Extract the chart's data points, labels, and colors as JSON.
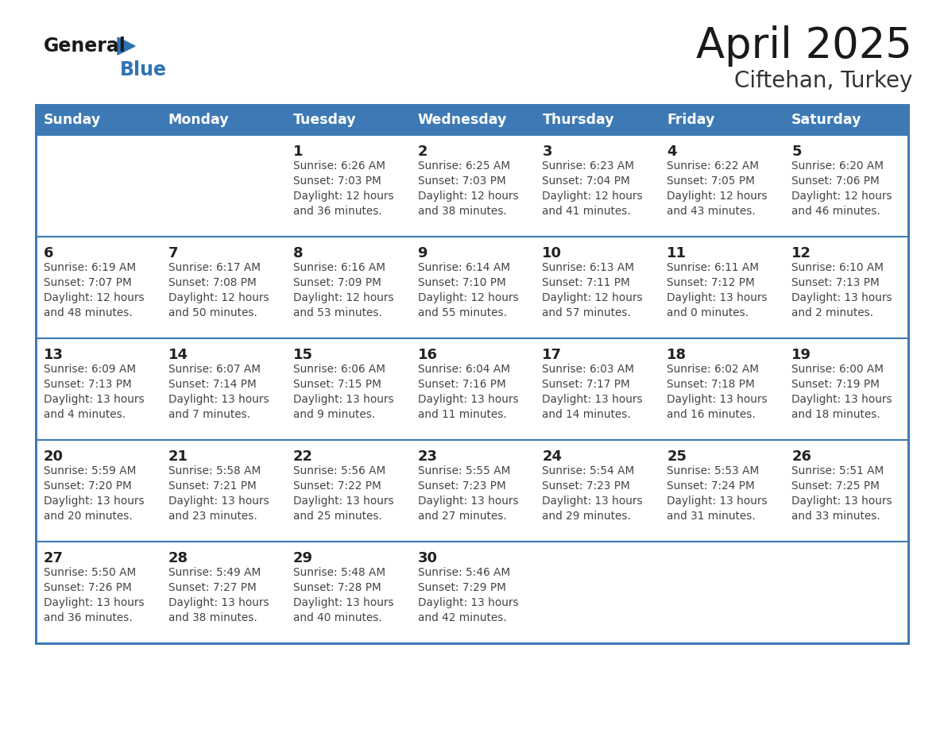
{
  "title": "April 2025",
  "subtitle": "Ciftehan, Turkey",
  "days_of_week": [
    "Sunday",
    "Monday",
    "Tuesday",
    "Wednesday",
    "Thursday",
    "Friday",
    "Saturday"
  ],
  "header_bg": "#3D7AB5",
  "header_text": "#FFFFFF",
  "cell_bg": "#FFFFFF",
  "row_border_color": "#3D7AB5",
  "day_number_color": "#222222",
  "text_color": "#444444",
  "title_color": "#1a1a1a",
  "subtitle_color": "#333333",
  "logo_general_color": "#1a1a1a",
  "logo_blue_color": "#2E74B5",
  "outer_border_color": "#3D7AB5",
  "weeks": [
    [
      {
        "day": null,
        "data": null
      },
      {
        "day": null,
        "data": null
      },
      {
        "day": 1,
        "data": {
          "sunrise": "6:26 AM",
          "sunset": "7:03 PM",
          "daylight": "12 hours",
          "daylight2": "and 36 minutes."
        }
      },
      {
        "day": 2,
        "data": {
          "sunrise": "6:25 AM",
          "sunset": "7:03 PM",
          "daylight": "12 hours",
          "daylight2": "and 38 minutes."
        }
      },
      {
        "day": 3,
        "data": {
          "sunrise": "6:23 AM",
          "sunset": "7:04 PM",
          "daylight": "12 hours",
          "daylight2": "and 41 minutes."
        }
      },
      {
        "day": 4,
        "data": {
          "sunrise": "6:22 AM",
          "sunset": "7:05 PM",
          "daylight": "12 hours",
          "daylight2": "and 43 minutes."
        }
      },
      {
        "day": 5,
        "data": {
          "sunrise": "6:20 AM",
          "sunset": "7:06 PM",
          "daylight": "12 hours",
          "daylight2": "and 46 minutes."
        }
      }
    ],
    [
      {
        "day": 6,
        "data": {
          "sunrise": "6:19 AM",
          "sunset": "7:07 PM",
          "daylight": "12 hours",
          "daylight2": "and 48 minutes."
        }
      },
      {
        "day": 7,
        "data": {
          "sunrise": "6:17 AM",
          "sunset": "7:08 PM",
          "daylight": "12 hours",
          "daylight2": "and 50 minutes."
        }
      },
      {
        "day": 8,
        "data": {
          "sunrise": "6:16 AM",
          "sunset": "7:09 PM",
          "daylight": "12 hours",
          "daylight2": "and 53 minutes."
        }
      },
      {
        "day": 9,
        "data": {
          "sunrise": "6:14 AM",
          "sunset": "7:10 PM",
          "daylight": "12 hours",
          "daylight2": "and 55 minutes."
        }
      },
      {
        "day": 10,
        "data": {
          "sunrise": "6:13 AM",
          "sunset": "7:11 PM",
          "daylight": "12 hours",
          "daylight2": "and 57 minutes."
        }
      },
      {
        "day": 11,
        "data": {
          "sunrise": "6:11 AM",
          "sunset": "7:12 PM",
          "daylight": "13 hours",
          "daylight2": "and 0 minutes."
        }
      },
      {
        "day": 12,
        "data": {
          "sunrise": "6:10 AM",
          "sunset": "7:13 PM",
          "daylight": "13 hours",
          "daylight2": "and 2 minutes."
        }
      }
    ],
    [
      {
        "day": 13,
        "data": {
          "sunrise": "6:09 AM",
          "sunset": "7:13 PM",
          "daylight": "13 hours",
          "daylight2": "and 4 minutes."
        }
      },
      {
        "day": 14,
        "data": {
          "sunrise": "6:07 AM",
          "sunset": "7:14 PM",
          "daylight": "13 hours",
          "daylight2": "and 7 minutes."
        }
      },
      {
        "day": 15,
        "data": {
          "sunrise": "6:06 AM",
          "sunset": "7:15 PM",
          "daylight": "13 hours",
          "daylight2": "and 9 minutes."
        }
      },
      {
        "day": 16,
        "data": {
          "sunrise": "6:04 AM",
          "sunset": "7:16 PM",
          "daylight": "13 hours",
          "daylight2": "and 11 minutes."
        }
      },
      {
        "day": 17,
        "data": {
          "sunrise": "6:03 AM",
          "sunset": "7:17 PM",
          "daylight": "13 hours",
          "daylight2": "and 14 minutes."
        }
      },
      {
        "day": 18,
        "data": {
          "sunrise": "6:02 AM",
          "sunset": "7:18 PM",
          "daylight": "13 hours",
          "daylight2": "and 16 minutes."
        }
      },
      {
        "day": 19,
        "data": {
          "sunrise": "6:00 AM",
          "sunset": "7:19 PM",
          "daylight": "13 hours",
          "daylight2": "and 18 minutes."
        }
      }
    ],
    [
      {
        "day": 20,
        "data": {
          "sunrise": "5:59 AM",
          "sunset": "7:20 PM",
          "daylight": "13 hours",
          "daylight2": "and 20 minutes."
        }
      },
      {
        "day": 21,
        "data": {
          "sunrise": "5:58 AM",
          "sunset": "7:21 PM",
          "daylight": "13 hours",
          "daylight2": "and 23 minutes."
        }
      },
      {
        "day": 22,
        "data": {
          "sunrise": "5:56 AM",
          "sunset": "7:22 PM",
          "daylight": "13 hours",
          "daylight2": "and 25 minutes."
        }
      },
      {
        "day": 23,
        "data": {
          "sunrise": "5:55 AM",
          "sunset": "7:23 PM",
          "daylight": "13 hours",
          "daylight2": "and 27 minutes."
        }
      },
      {
        "day": 24,
        "data": {
          "sunrise": "5:54 AM",
          "sunset": "7:23 PM",
          "daylight": "13 hours",
          "daylight2": "and 29 minutes."
        }
      },
      {
        "day": 25,
        "data": {
          "sunrise": "5:53 AM",
          "sunset": "7:24 PM",
          "daylight": "13 hours",
          "daylight2": "and 31 minutes."
        }
      },
      {
        "day": 26,
        "data": {
          "sunrise": "5:51 AM",
          "sunset": "7:25 PM",
          "daylight": "13 hours",
          "daylight2": "and 33 minutes."
        }
      }
    ],
    [
      {
        "day": 27,
        "data": {
          "sunrise": "5:50 AM",
          "sunset": "7:26 PM",
          "daylight": "13 hours",
          "daylight2": "and 36 minutes."
        }
      },
      {
        "day": 28,
        "data": {
          "sunrise": "5:49 AM",
          "sunset": "7:27 PM",
          "daylight": "13 hours",
          "daylight2": "and 38 minutes."
        }
      },
      {
        "day": 29,
        "data": {
          "sunrise": "5:48 AM",
          "sunset": "7:28 PM",
          "daylight": "13 hours",
          "daylight2": "and 40 minutes."
        }
      },
      {
        "day": 30,
        "data": {
          "sunrise": "5:46 AM",
          "sunset": "7:29 PM",
          "daylight": "13 hours",
          "daylight2": "and 42 minutes."
        }
      },
      {
        "day": null,
        "data": null
      },
      {
        "day": null,
        "data": null
      },
      {
        "day": null,
        "data": null
      }
    ]
  ]
}
